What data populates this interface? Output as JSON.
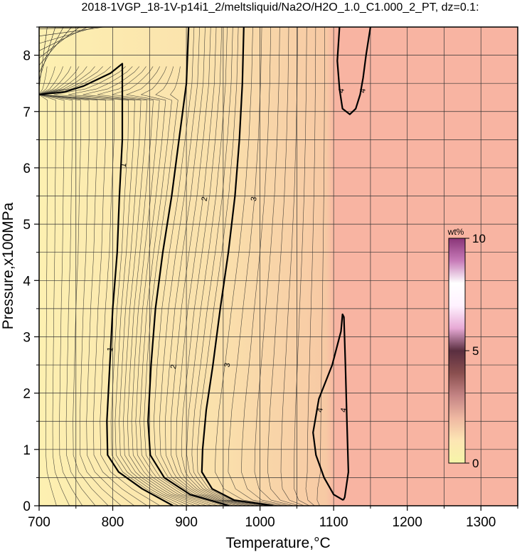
{
  "chart_data": {
    "type": "contour",
    "title": "2018-1VGP_18-1V-p14i1_2/meltsliquid/Na2O/H2O_1.0_C1.000_2_PT, dz=0.1:",
    "xlabel": "Temperature,°C",
    "ylabel": "Pressure,x100MPa",
    "xlim": [
      700,
      1350
    ],
    "ylim": [
      0,
      8.5
    ],
    "xticks": [
      700,
      800,
      900,
      1000,
      1100,
      1200,
      1300
    ],
    "yticks": [
      0,
      1,
      2,
      3,
      4,
      5,
      6,
      7,
      8
    ],
    "grid": true,
    "contour_interval": 0.1,
    "colorbar": {
      "unit": "wt%",
      "range": [
        0,
        10
      ],
      "ticks": [
        0,
        5,
        10
      ],
      "colors": [
        "#f6f5a8",
        "#fde6b4",
        "#efb8a2",
        "#c48484",
        "#8a4f4f",
        "#5a2e40",
        "#e7a9d5",
        "#fff2ff",
        "#ffffff",
        "#c77bb8",
        "#8a3578"
      ]
    },
    "background_colors": {
      "low": "#fdf0b1",
      "mid": "#f9d3a1",
      "high": "#f8b4a2"
    },
    "plateau_from_temperature": 1100,
    "labeled_contours": [
      {
        "level": 1,
        "x": [
          700,
          735,
          760,
          797,
          813,
          813,
          809,
          806,
          800,
          796,
          792,
          793,
          808,
          840,
          882
        ],
        "y": [
          7.3,
          7.35,
          7.45,
          7.68,
          7.85,
          6.5,
          5.5,
          4.5,
          3.5,
          2.5,
          1.5,
          0.9,
          0.6,
          0.3,
          0.0
        ]
      },
      {
        "level": 2,
        "x": [
          903,
          900,
          890,
          880,
          868,
          858,
          852,
          848,
          851,
          870,
          905,
          958
        ],
        "y": [
          8.5,
          7.5,
          6.5,
          5.5,
          4.5,
          3.5,
          2.5,
          1.5,
          0.9,
          0.5,
          0.2,
          0.0
        ]
      },
      {
        "level": 3,
        "x": [
          978,
          976,
          972,
          966,
          957,
          946,
          936,
          927,
          922,
          921,
          935,
          965,
          1018
        ],
        "y": [
          8.5,
          7.5,
          6.5,
          5.5,
          4.5,
          3.5,
          2.5,
          1.7,
          1.0,
          0.6,
          0.3,
          0.1,
          0.0
        ]
      },
      {
        "level": 4,
        "x": [
          1113,
          1100,
          1087,
          1076,
          1072,
          1080,
          1098,
          1110,
          1112,
          1114,
          1116,
          1118,
          1120,
          1115,
          1113
        ],
        "y": [
          0.1,
          0.2,
          0.5,
          0.9,
          1.3,
          1.9,
          2.5,
          3.1,
          3.4,
          3.35,
          2.5,
          1.5,
          0.6,
          0.15,
          0.1
        ]
      },
      {
        "level": 4,
        "x": [
          1108,
          1105,
          1108,
          1112,
          1122,
          1130,
          1136,
          1140,
          1144,
          1150
        ],
        "y": [
          8.5,
          7.9,
          7.4,
          7.05,
          6.95,
          7.05,
          7.3,
          7.6,
          8.0,
          8.5
        ]
      }
    ],
    "contour_labels": [
      {
        "text": "1",
        "x": 814,
        "y": 6.05
      },
      {
        "text": "1",
        "x": 796,
        "y": 2.78
      },
      {
        "text": "2",
        "x": 924,
        "y": 5.45
      },
      {
        "text": "2",
        "x": 882,
        "y": 2.47
      },
      {
        "text": "3",
        "x": 991,
        "y": 5.45
      },
      {
        "text": "3",
        "x": 955,
        "y": 2.5
      },
      {
        "text": "4",
        "x": 1110,
        "y": 7.37
      },
      {
        "text": "4",
        "x": 1139,
        "y": 7.37
      },
      {
        "text": "4",
        "x": 1081,
        "y": 1.7
      },
      {
        "text": "4",
        "x": 1113,
        "y": 1.7
      }
    ]
  }
}
